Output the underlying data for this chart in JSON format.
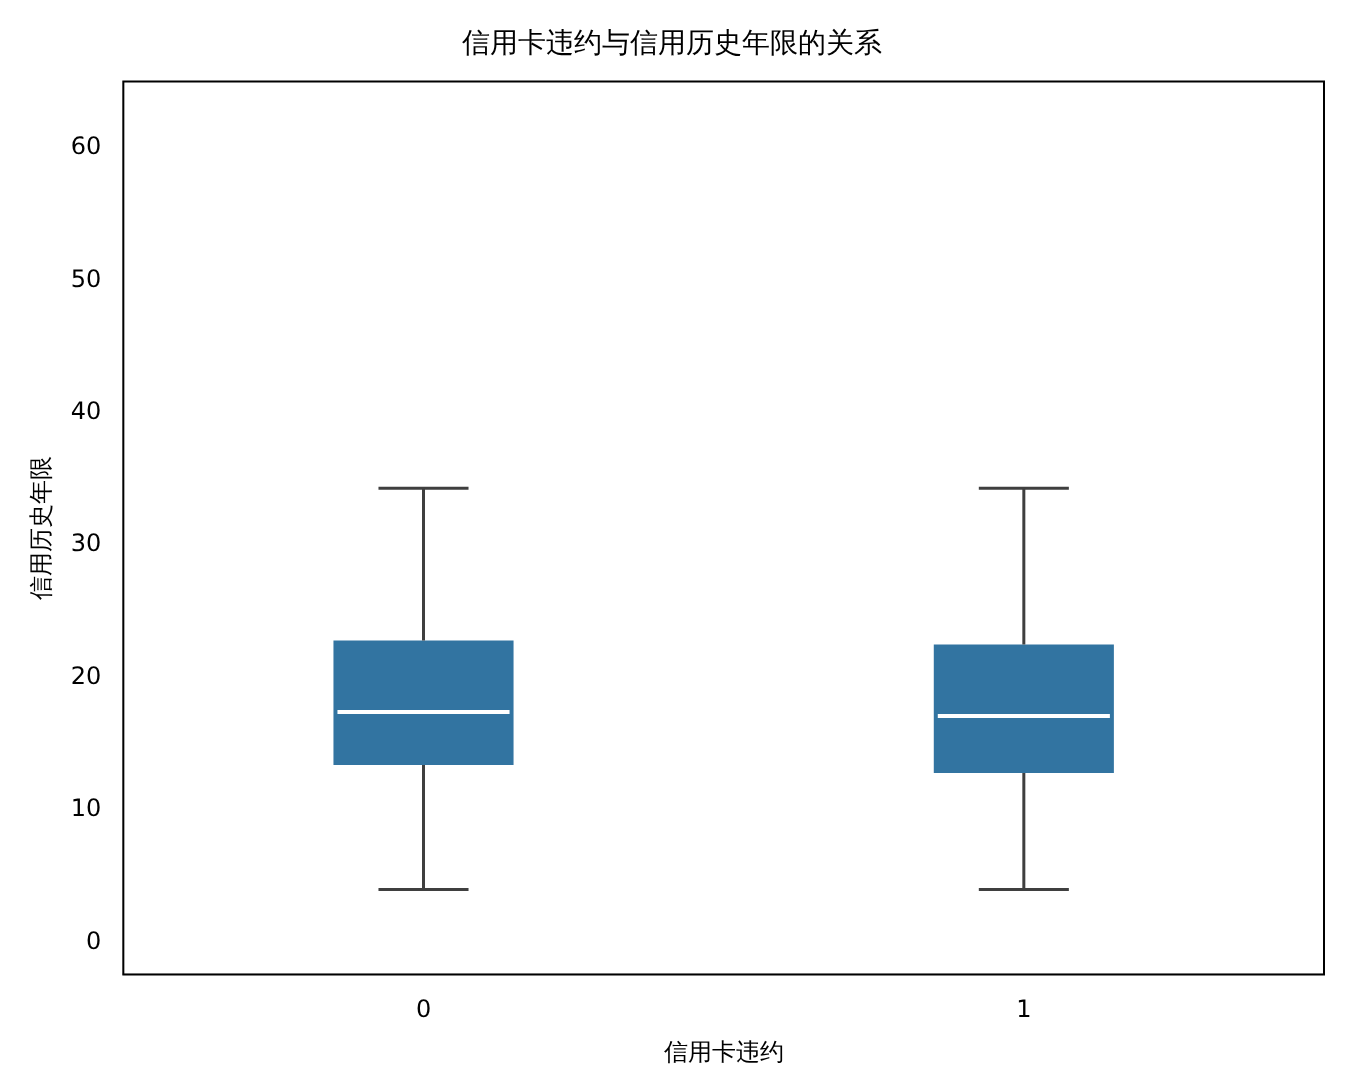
{
  "chart_data": {
    "type": "box",
    "title": "信用卡违约与信用历史年限的关系",
    "xlabel": "信用卡违约",
    "ylabel": "信用历史年限",
    "categories": [
      "0",
      "1"
    ],
    "color": "#3274a1",
    "boxes": [
      {
        "low": 4,
        "q1": 13.4,
        "median": 17.4,
        "q3": 22.8,
        "high": 34.3
      },
      {
        "low": 4,
        "q1": 12.8,
        "median": 17.1,
        "q3": 22.5,
        "high": 34.3
      }
    ],
    "ylim": [
      -2.4,
      65
    ],
    "yticks": [
      0,
      10,
      20,
      30,
      40,
      50,
      60
    ],
    "grid": false,
    "legend": false
  }
}
